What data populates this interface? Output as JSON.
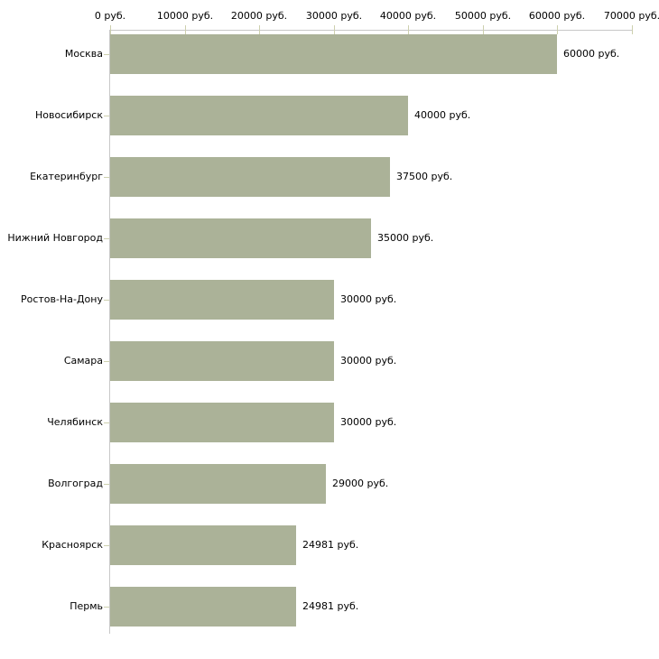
{
  "chart_data": {
    "type": "bar",
    "orientation": "horizontal",
    "title": "",
    "xlabel": "",
    "ylabel": "",
    "categories": [
      "Москва",
      "Новосибирск",
      "Екатеринбург",
      "Нижний Новгород",
      "Ростов-На-Дону",
      "Самара",
      "Челябинск",
      "Волгоград",
      "Красноярск",
      "Пермь"
    ],
    "values": [
      60000,
      40000,
      37500,
      35000,
      30000,
      30000,
      30000,
      29000,
      24981,
      24981
    ],
    "value_labels": [
      "60000 руб.",
      "40000 руб.",
      "37500 руб.",
      "35000 руб.",
      "30000 руб.",
      "30000 руб.",
      "30000 руб.",
      "29000 руб.",
      "24981 руб.",
      "24981 руб."
    ],
    "x_axis": {
      "position": "top",
      "min": 0,
      "max": 70000,
      "ticks": [
        0,
        10000,
        20000,
        30000,
        40000,
        50000,
        60000,
        70000
      ],
      "tick_labels": [
        "0 руб.",
        "10000 руб.",
        "20000 руб.",
        "30000 руб.",
        "40000 руб.",
        "50000 руб.",
        "60000 руб.",
        "70000 руб."
      ]
    },
    "grid": false,
    "legend": false,
    "colors": {
      "bar": "#abb298",
      "axis_line": "#c8c8c8",
      "tick_mark": "#cdd0ae",
      "text": "#000000",
      "background": "#ffffff"
    }
  }
}
